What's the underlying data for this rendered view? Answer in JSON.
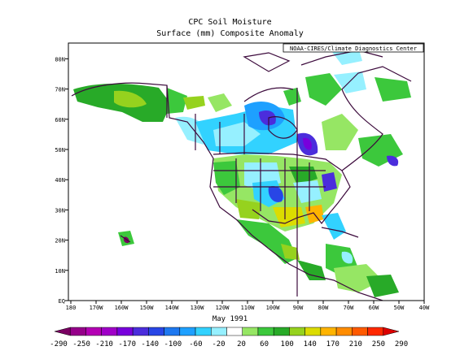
{
  "title": "CPC Soil Moisture",
  "subtitle": "Surface  (mm) Composite Anomaly",
  "credit": "NOAA-CIRES/Climate Diagnostics Center",
  "date_label": "May 1991",
  "lat_labels": [
    "EQ",
    "10N",
    "20N",
    "30N",
    "40N",
    "50N",
    "60N",
    "70N",
    "80N"
  ],
  "lon_labels": [
    "180",
    "170W",
    "160W",
    "150W",
    "140W",
    "130W",
    "120W",
    "110W",
    "100W",
    "90W",
    "80W",
    "70W",
    "60W",
    "50W",
    "40W"
  ],
  "colorbar": {
    "labels": [
      "-290",
      "-250",
      "-210",
      "-170",
      "-140",
      "-100",
      "-60",
      "-20",
      "20",
      "60",
      "100",
      "140",
      "170",
      "210",
      "250",
      "290"
    ],
    "colors": [
      "#7a0062",
      "#96008a",
      "#b400b4",
      "#a000c8",
      "#7800dc",
      "#4b2ddc",
      "#2846e6",
      "#1e78f0",
      "#1ea0ff",
      "#32d2ff",
      "#96f0ff",
      "#ffffff",
      "#96e664",
      "#3cc83c",
      "#28aa28",
      "#96d21e",
      "#dcdc00",
      "#ffb400",
      "#ff8c00",
      "#ff5a00",
      "#ff2800",
      "#dc0000"
    ]
  }
}
